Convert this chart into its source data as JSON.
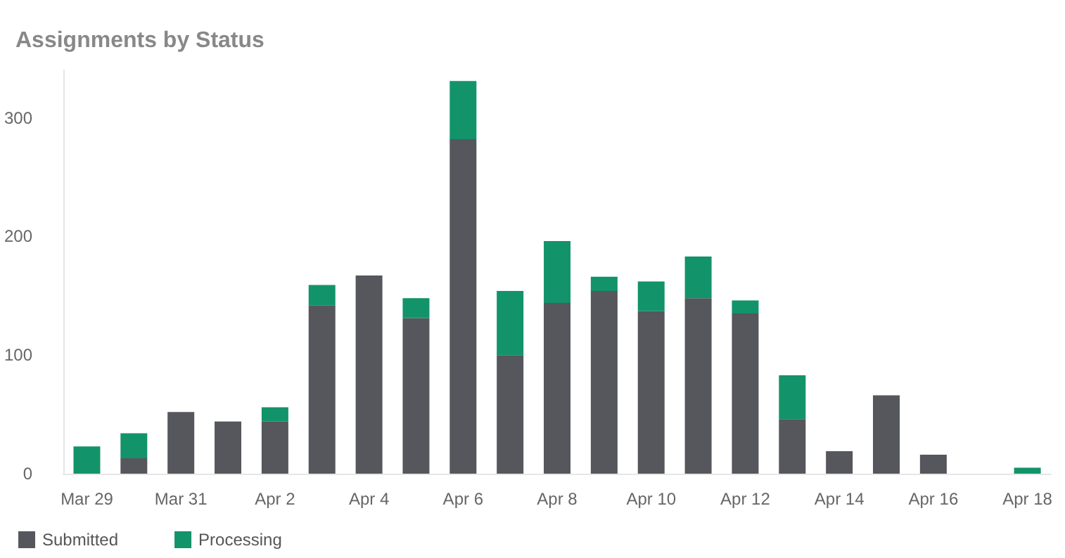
{
  "chart_data": {
    "type": "bar",
    "title": "Assignments by Status",
    "stacked": true,
    "categories": [
      "Mar 29",
      null,
      "Mar 31",
      null,
      "Apr 2",
      null,
      "Apr 4",
      null,
      "Apr 6",
      null,
      "Apr 8",
      null,
      "Apr 10",
      null,
      "Apr 12",
      null,
      "Apr 14",
      null,
      "Apr 16",
      null,
      "Apr 18"
    ],
    "series": [
      {
        "name": "Submitted",
        "color": "#55575d",
        "values": [
          0,
          13,
          52,
          44,
          44,
          142,
          167,
          131,
          282,
          100,
          144,
          154,
          137,
          148,
          135,
          46,
          19,
          66,
          16,
          0,
          0
        ]
      },
      {
        "name": "Processing",
        "color": "#13936a",
        "values": [
          23,
          21,
          0,
          0,
          12,
          17,
          0,
          17,
          49,
          54,
          52,
          12,
          25,
          35,
          11,
          37,
          0,
          0,
          0,
          0,
          5
        ]
      }
    ],
    "ylim": [
      0,
      340
    ],
    "yticks": [
      0,
      100,
      200,
      300
    ],
    "grid": false,
    "legend": "bottom left"
  }
}
